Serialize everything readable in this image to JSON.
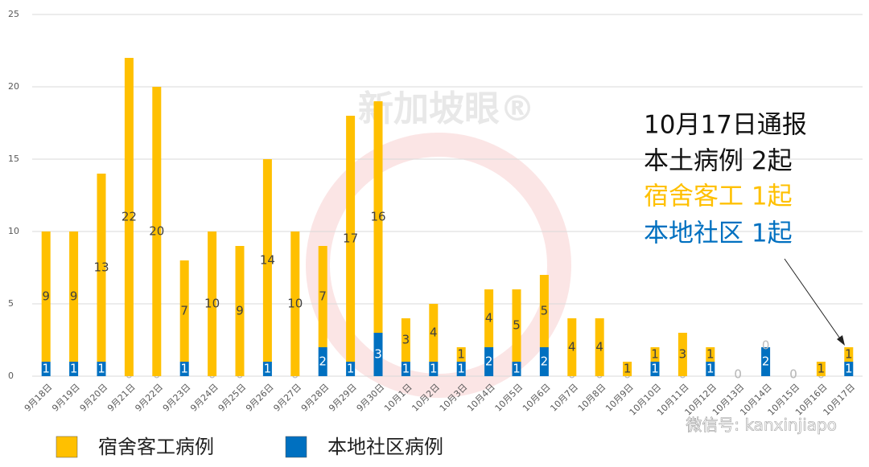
{
  "chart_data": {
    "type": "bar",
    "stacked": true,
    "categories": [
      "9月18日",
      "9月19日",
      "9月20日",
      "9月21日",
      "9月22日",
      "9月23日",
      "9月24日",
      "9月25日",
      "9月26日",
      "9月27日",
      "9月28日",
      "9月29日",
      "9月30日",
      "10月1日",
      "10月2日",
      "10月3日",
      "10月4日",
      "10月5日",
      "10月6日",
      "10月7日",
      "10月8日",
      "10月9日",
      "10月10日",
      "10月11日",
      "10月12日",
      "10月13日",
      "10月14日",
      "10月15日",
      "10月16日",
      "10月17日"
    ],
    "series": [
      {
        "name": "宿舍客工病例",
        "color": "#FFC000",
        "values": [
          9,
          9,
          13,
          22,
          20,
          7,
          10,
          9,
          14,
          10,
          7,
          17,
          16,
          3,
          4,
          1,
          4,
          5,
          5,
          4,
          4,
          1,
          1,
          3,
          1,
          0,
          0,
          0,
          1,
          1
        ]
      },
      {
        "name": "本地社区病例",
        "color": "#0070C0",
        "values": [
          1,
          1,
          1,
          0,
          0,
          1,
          0,
          0,
          1,
          0,
          2,
          1,
          3,
          1,
          1,
          1,
          2,
          1,
          2,
          0,
          0,
          0,
          1,
          0,
          1,
          0,
          2,
          0,
          0,
          1
        ]
      }
    ],
    "ylim": [
      0,
      25
    ],
    "yticks": [
      0,
      5,
      10,
      15,
      20,
      25
    ],
    "grid": true,
    "annotation": [
      "10月17日通报",
      "本土病例 2起",
      "宿舍客工 1起",
      "本地社区 1起"
    ],
    "watermark": "新加坡眼®",
    "credit": "微信号: kanxinjiapo"
  }
}
